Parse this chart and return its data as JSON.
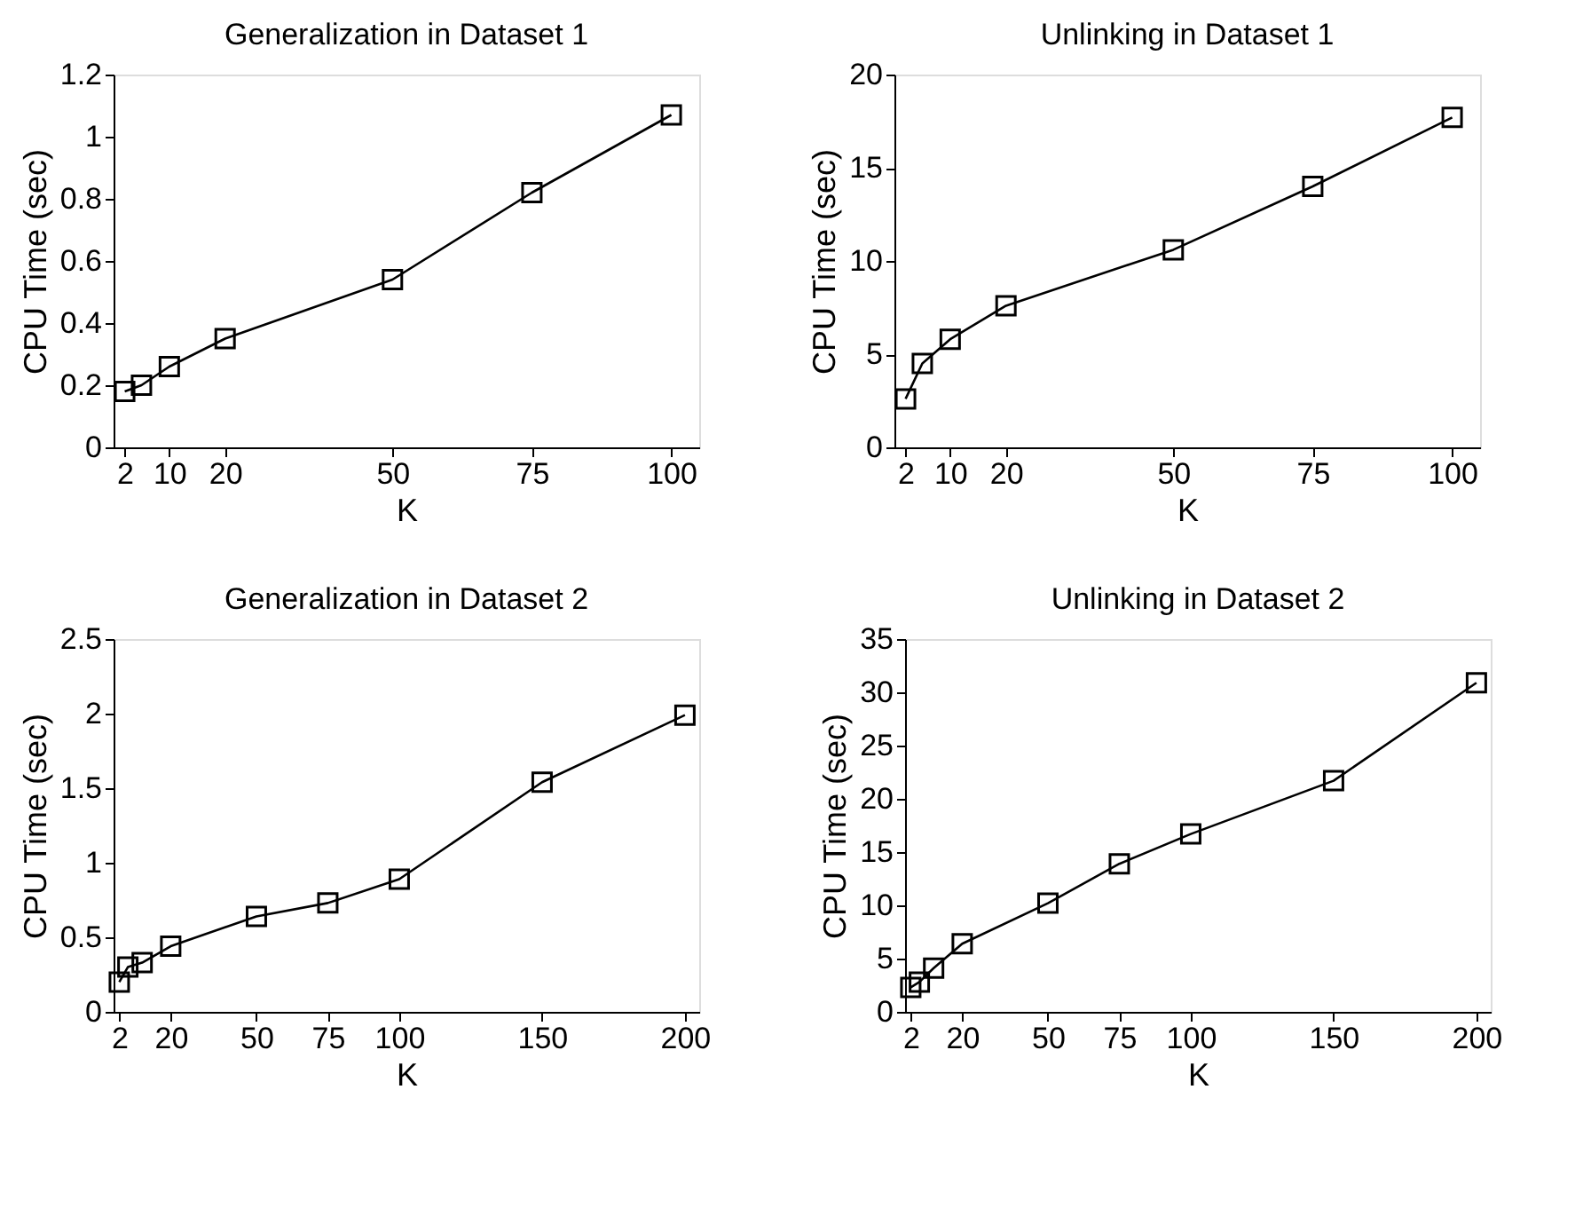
{
  "chart_data": [
    {
      "type": "line",
      "title": "Generalization in Dataset 1",
      "xlabel": "K",
      "ylabel": "CPU Time (sec)",
      "marker": "square",
      "line_style": "solid",
      "grid": false,
      "legend": false,
      "x": [
        2,
        5,
        10,
        20,
        50,
        75,
        100
      ],
      "xlim": [
        0,
        105
      ],
      "xticks": [
        2,
        10,
        20,
        50,
        75,
        100
      ],
      "ylim": [
        0,
        1.2
      ],
      "yticks": [
        0,
        0.2,
        0.4,
        0.6,
        0.8,
        1,
        1.2
      ],
      "series": [
        {
          "color": "#000000",
          "values": [
            0.18,
            0.2,
            0.26,
            0.35,
            0.54,
            0.82,
            1.07
          ]
        }
      ]
    },
    {
      "type": "line",
      "title": "Unlinking in Dataset 1",
      "xlabel": "K",
      "ylabel": "CPU Time (sec)",
      "marker": "square",
      "line_style": "solid",
      "grid": false,
      "legend": false,
      "x": [
        2,
        5,
        10,
        20,
        50,
        75,
        100
      ],
      "xlim": [
        0,
        105
      ],
      "xticks": [
        2,
        10,
        20,
        50,
        75,
        100
      ],
      "ylim": [
        0,
        20
      ],
      "yticks": [
        0,
        5,
        10,
        15,
        20
      ],
      "series": [
        {
          "color": "#000000",
          "values": [
            2.6,
            4.5,
            5.8,
            7.6,
            10.6,
            14.0,
            17.7
          ]
        }
      ]
    },
    {
      "type": "line",
      "title": "Generalization in Dataset 2",
      "xlabel": "K",
      "ylabel": "CPU Time (sec)",
      "marker": "square",
      "line_style": "solid",
      "grid": false,
      "legend": false,
      "x": [
        2,
        5,
        10,
        20,
        50,
        75,
        100,
        150,
        200
      ],
      "xlim": [
        0,
        205
      ],
      "xticks": [
        2,
        20,
        50,
        75,
        100,
        150,
        200
      ],
      "ylim": [
        0,
        2.5
      ],
      "yticks": [
        0,
        0.5,
        1,
        1.5,
        2,
        2.5
      ],
      "series": [
        {
          "color": "#000000",
          "values": [
            0.2,
            0.3,
            0.33,
            0.44,
            0.64,
            0.73,
            0.89,
            1.54,
            1.99
          ]
        }
      ]
    },
    {
      "type": "line",
      "title": "Unlinking in Dataset 2",
      "xlabel": "K",
      "ylabel": "CPU Time (sec)",
      "marker": "square",
      "line_style": "solid",
      "grid": false,
      "legend": false,
      "x": [
        2,
        5,
        10,
        20,
        50,
        75,
        100,
        150,
        200
      ],
      "xlim": [
        0,
        205
      ],
      "xticks": [
        2,
        20,
        50,
        75,
        100,
        150,
        200
      ],
      "ylim": [
        0,
        35
      ],
      "yticks": [
        0,
        5,
        10,
        15,
        20,
        25,
        30,
        35
      ],
      "series": [
        {
          "color": "#000000",
          "values": [
            2.3,
            2.8,
            4.1,
            6.4,
            10.2,
            13.9,
            16.7,
            21.7,
            30.9
          ]
        }
      ]
    }
  ]
}
